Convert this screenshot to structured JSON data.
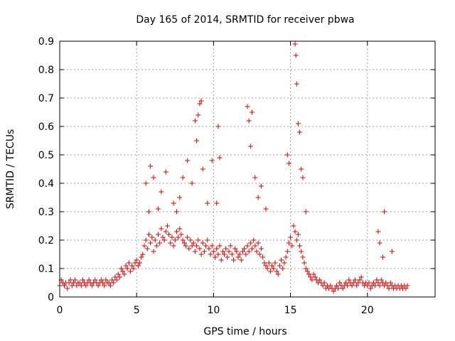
{
  "chart_data": {
    "type": "scatter",
    "title": "Day 165 of 2014, SRMTID for receiver pbwa",
    "xlabel": "GPS time / hours",
    "ylabel": "SRMTID / TECUs",
    "xlim": [
      0,
      24.4
    ],
    "ylim": [
      0,
      0.9
    ],
    "xticks": [
      "0",
      "5",
      "10",
      "15",
      "20"
    ],
    "xtick_values": [
      0,
      5,
      10,
      15,
      20
    ],
    "yticks": [
      "0",
      "0.1",
      "0.2",
      "0.3",
      "0.4",
      "0.5",
      "0.6",
      "0.7",
      "0.8",
      "0.9"
    ],
    "ytick_values": [
      0,
      0.1,
      0.2,
      0.3,
      0.4,
      0.5,
      0.6,
      0.7,
      0.8,
      0.9
    ],
    "grid": true,
    "marker": "+",
    "marker_color": "#e00000",
    "series": [
      {
        "name": "SRMTID",
        "color": "#e00000",
        "x": [
          0.0,
          0.1,
          0.2,
          0.3,
          0.4,
          0.5,
          0.6,
          0.7,
          0.8,
          0.9,
          1.0,
          1.1,
          1.2,
          1.3,
          1.4,
          1.5,
          1.6,
          1.7,
          1.8,
          1.9,
          2.0,
          2.1,
          2.2,
          2.3,
          2.4,
          2.5,
          2.6,
          2.7,
          2.8,
          2.9,
          3.0,
          3.1,
          3.2,
          3.3,
          3.4,
          3.5,
          3.6,
          3.7,
          3.8,
          3.9,
          4.0,
          4.1,
          4.2,
          4.3,
          4.4,
          4.5,
          4.6,
          4.7,
          4.8,
          4.9,
          5.0,
          5.1,
          5.2,
          5.3,
          5.4,
          5.5,
          5.6,
          5.7,
          5.8,
          5.9,
          6.0,
          6.1,
          6.2,
          6.3,
          6.4,
          6.5,
          6.6,
          6.7,
          6.8,
          6.9,
          7.0,
          7.1,
          7.2,
          7.3,
          7.4,
          7.5,
          7.6,
          7.7,
          7.8,
          7.9,
          8.0,
          8.1,
          8.2,
          8.3,
          8.4,
          8.5,
          8.6,
          8.7,
          8.8,
          8.9,
          9.0,
          9.1,
          9.2,
          9.3,
          9.4,
          9.5,
          9.6,
          9.7,
          9.8,
          9.9,
          10.0,
          10.1,
          10.2,
          10.3,
          10.4,
          10.5,
          10.6,
          10.7,
          10.8,
          10.9,
          11.0,
          11.1,
          11.2,
          11.3,
          11.4,
          11.5,
          11.6,
          11.7,
          11.8,
          11.9,
          12.0,
          12.1,
          12.2,
          12.3,
          12.4,
          12.5,
          12.6,
          12.7,
          12.8,
          12.9,
          13.0,
          13.1,
          13.2,
          13.3,
          13.4,
          13.5,
          13.6,
          13.7,
          13.8,
          13.9,
          14.0,
          14.1,
          14.2,
          14.3,
          14.4,
          14.5,
          14.6,
          14.7,
          14.8,
          14.9,
          15.0,
          15.1,
          15.2,
          15.3,
          15.4,
          15.5,
          15.6,
          15.7,
          15.8,
          15.9,
          16.0,
          16.1,
          16.2,
          16.3,
          16.4,
          16.5,
          16.6,
          16.7,
          16.8,
          16.9,
          17.0,
          17.1,
          17.2,
          17.3,
          17.4,
          17.5,
          17.6,
          17.7,
          17.8,
          17.9,
          18.0,
          18.1,
          18.2,
          18.3,
          18.4,
          18.5,
          18.6,
          18.7,
          18.8,
          18.9,
          19.0,
          19.1,
          19.2,
          19.3,
          19.4,
          19.5,
          19.6,
          19.7,
          19.8,
          19.9,
          20.0,
          20.1,
          20.2,
          20.3,
          20.4,
          20.5,
          20.6,
          20.7,
          20.8,
          20.9,
          21.0,
          21.1,
          21.2,
          21.3,
          21.4,
          21.5,
          21.6,
          21.7,
          21.8,
          21.9,
          22.0,
          22.1,
          22.2,
          22.3,
          22.4,
          22.5,
          22.6,
          5.6,
          5.8,
          5.9,
          6.1,
          6.4,
          6.6,
          6.9,
          7.4,
          7.6,
          7.8,
          8.0,
          8.3,
          8.6,
          8.8,
          8.9,
          9.0,
          9.1,
          9.2,
          9.3,
          9.6,
          9.9,
          10.2,
          10.3,
          10.4,
          12.2,
          12.3,
          12.4,
          12.5,
          12.7,
          12.9,
          13.1,
          13.4,
          14.8,
          14.9,
          15.3,
          15.35,
          15.4,
          15.5,
          15.6,
          15.7,
          15.8,
          16.0,
          20.7,
          20.8,
          21.0,
          21.1,
          21.6
        ],
        "y": [
          0.04,
          0.06,
          0.05,
          0.04,
          0.05,
          0.03,
          0.05,
          0.06,
          0.04,
          0.05,
          0.06,
          0.04,
          0.05,
          0.05,
          0.04,
          0.06,
          0.05,
          0.04,
          0.05,
          0.06,
          0.05,
          0.04,
          0.05,
          0.06,
          0.05,
          0.04,
          0.05,
          0.06,
          0.05,
          0.04,
          0.06,
          0.05,
          0.05,
          0.04,
          0.06,
          0.05,
          0.07,
          0.06,
          0.08,
          0.07,
          0.1,
          0.09,
          0.08,
          0.11,
          0.1,
          0.12,
          0.09,
          0.11,
          0.1,
          0.12,
          0.13,
          0.11,
          0.12,
          0.14,
          0.15,
          0.18,
          0.2,
          0.17,
          0.22,
          0.19,
          0.21,
          0.16,
          0.2,
          0.18,
          0.22,
          0.19,
          0.24,
          0.21,
          0.2,
          0.23,
          0.25,
          0.22,
          0.19,
          0.21,
          0.18,
          0.2,
          0.23,
          0.21,
          0.24,
          0.22,
          0.2,
          0.19,
          0.18,
          0.21,
          0.17,
          0.2,
          0.18,
          0.19,
          0.16,
          0.18,
          0.2,
          0.17,
          0.15,
          0.19,
          0.16,
          0.18,
          0.2,
          0.17,
          0.15,
          0.18,
          0.16,
          0.14,
          0.17,
          0.15,
          0.18,
          0.13,
          0.16,
          0.15,
          0.17,
          0.14,
          0.16,
          0.18,
          0.15,
          0.13,
          0.17,
          0.16,
          0.14,
          0.15,
          0.13,
          0.16,
          0.17,
          0.15,
          0.18,
          0.16,
          0.19,
          0.17,
          0.2,
          0.18,
          0.16,
          0.19,
          0.15,
          0.17,
          0.14,
          0.12,
          0.11,
          0.1,
          0.12,
          0.09,
          0.11,
          0.1,
          0.12,
          0.09,
          0.08,
          0.11,
          0.13,
          0.1,
          0.12,
          0.14,
          0.16,
          0.19,
          0.21,
          0.18,
          0.25,
          0.23,
          0.2,
          0.22,
          0.18,
          0.16,
          0.14,
          0.12,
          0.1,
          0.09,
          0.08,
          0.07,
          0.06,
          0.08,
          0.07,
          0.06,
          0.05,
          0.06,
          0.05,
          0.04,
          0.05,
          0.03,
          0.04,
          0.03,
          0.04,
          0.03,
          0.02,
          0.03,
          0.04,
          0.03,
          0.05,
          0.04,
          0.03,
          0.04,
          0.05,
          0.04,
          0.06,
          0.05,
          0.04,
          0.05,
          0.06,
          0.04,
          0.05,
          0.06,
          0.07,
          0.05,
          0.04,
          0.05,
          0.04,
          0.05,
          0.03,
          0.04,
          0.05,
          0.04,
          0.06,
          0.05,
          0.04,
          0.06,
          0.05,
          0.04,
          0.05,
          0.04,
          0.03,
          0.05,
          0.04,
          0.03,
          0.04,
          0.03,
          0.04,
          0.03,
          0.04,
          0.03,
          0.04,
          0.03,
          0.04,
          0.4,
          0.3,
          0.46,
          0.42,
          0.31,
          0.37,
          0.44,
          0.33,
          0.3,
          0.35,
          0.42,
          0.48,
          0.4,
          0.62,
          0.55,
          0.64,
          0.68,
          0.69,
          0.45,
          0.33,
          0.48,
          0.33,
          0.6,
          0.49,
          0.67,
          0.62,
          0.53,
          0.65,
          0.42,
          0.35,
          0.39,
          0.31,
          0.5,
          0.47,
          0.89,
          0.85,
          0.75,
          0.61,
          0.58,
          0.45,
          0.42,
          0.3,
          0.23,
          0.19,
          0.14,
          0.3,
          0.16
        ]
      }
    ]
  }
}
